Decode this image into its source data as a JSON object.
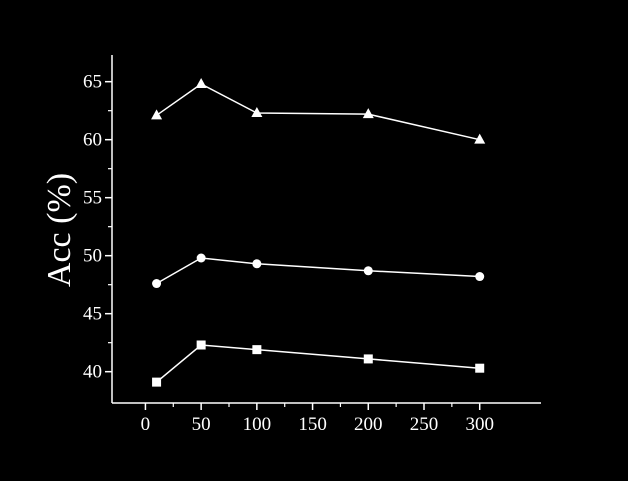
{
  "chart_data": {
    "type": "line",
    "title": "",
    "xlabel": "",
    "ylabel": "Acc (%)",
    "x": [
      10,
      50,
      100,
      200,
      300
    ],
    "xlim": [
      -30,
      355
    ],
    "ylim": [
      37.3,
      67.3
    ],
    "xticks": [
      0,
      50,
      100,
      150,
      200,
      250,
      300
    ],
    "yticks": [
      40,
      45,
      50,
      55,
      60,
      65
    ],
    "series": [
      {
        "marker": "triangle",
        "values": [
          62.1,
          64.8,
          62.3,
          62.2,
          60.0
        ]
      },
      {
        "marker": "circle",
        "values": [
          47.6,
          49.8,
          49.3,
          48.7,
          48.2
        ]
      },
      {
        "marker": "square",
        "values": [
          39.1,
          42.3,
          41.9,
          41.1,
          40.3
        ]
      }
    ],
    "colors": {
      "background": "#000000",
      "foreground": "#ffffff"
    },
    "grid": false,
    "legend": "none"
  }
}
